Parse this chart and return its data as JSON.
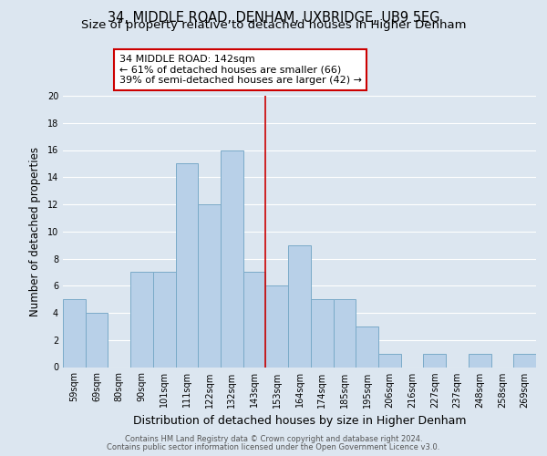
{
  "title": "34, MIDDLE ROAD, DENHAM, UXBRIDGE, UB9 5EG",
  "subtitle": "Size of property relative to detached houses in Higher Denham",
  "xlabel": "Distribution of detached houses by size in Higher Denham",
  "ylabel": "Number of detached properties",
  "footer_line1": "Contains HM Land Registry data © Crown copyright and database right 2024.",
  "footer_line2": "Contains public sector information licensed under the Open Government Licence v3.0.",
  "bin_labels": [
    "59sqm",
    "69sqm",
    "80sqm",
    "90sqm",
    "101sqm",
    "111sqm",
    "122sqm",
    "132sqm",
    "143sqm",
    "153sqm",
    "164sqm",
    "174sqm",
    "185sqm",
    "195sqm",
    "206sqm",
    "216sqm",
    "227sqm",
    "237sqm",
    "248sqm",
    "258sqm",
    "269sqm"
  ],
  "bin_values": [
    5,
    4,
    0,
    7,
    7,
    15,
    12,
    16,
    7,
    6,
    9,
    5,
    5,
    3,
    1,
    0,
    1,
    0,
    1,
    0,
    1
  ],
  "bar_color": "#b8d0e8",
  "bar_edge_color": "#7aaac8",
  "reference_line_x": 8,
  "reference_line_color": "#cc0000",
  "annotation_line1": "34 MIDDLE ROAD: 142sqm",
  "annotation_line2": "← 61% of detached houses are smaller (66)",
  "annotation_line3": "39% of semi-detached houses are larger (42) →",
  "annotation_box_color": "#ffffff",
  "annotation_box_edge_color": "#cc0000",
  "ylim": [
    0,
    20
  ],
  "yticks": [
    0,
    2,
    4,
    6,
    8,
    10,
    12,
    14,
    16,
    18,
    20
  ],
  "background_color": "#dce6f0",
  "plot_background_color": "#dce6f0",
  "grid_color": "#ffffff",
  "title_fontsize": 10.5,
  "subtitle_fontsize": 9.5,
  "xlabel_fontsize": 9,
  "ylabel_fontsize": 8.5,
  "tick_fontsize": 7,
  "annotation_fontsize": 8,
  "footer_fontsize": 6
}
